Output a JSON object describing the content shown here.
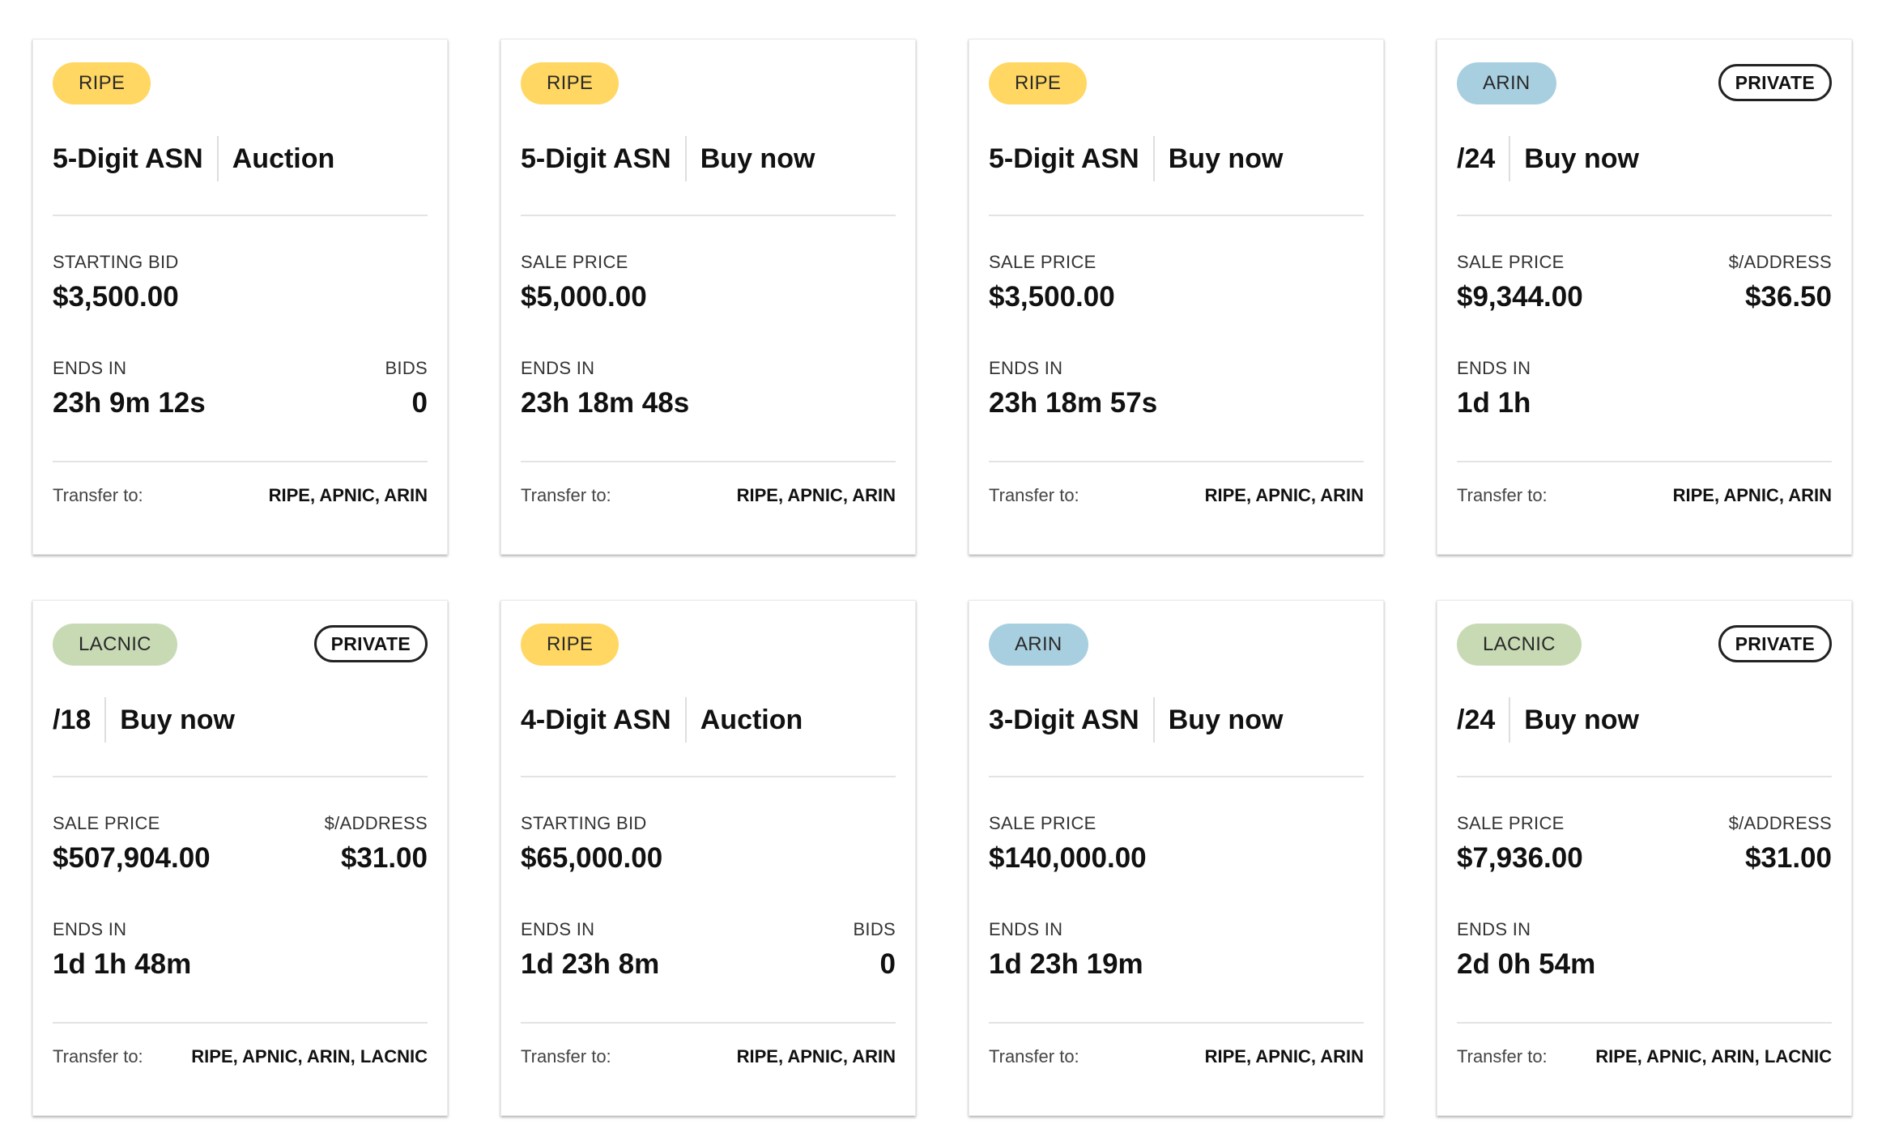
{
  "listings": [
    {
      "rir": "RIPE",
      "private": false,
      "item_type": "5-Digit ASN",
      "sale_type": "Auction",
      "price_label": "STARTING BID",
      "price": "$3,500.00",
      "per_address_label": "",
      "per_address": "",
      "ends_label": "ENDS IN",
      "ends_in": "23h 9m 12s",
      "bids_label": "BIDS",
      "bids": "0",
      "transfer_label": "Transfer to:",
      "transfer_to": "RIPE, APNIC, ARIN"
    },
    {
      "rir": "RIPE",
      "private": false,
      "item_type": "5-Digit ASN",
      "sale_type": "Buy now",
      "price_label": "SALE PRICE",
      "price": "$5,000.00",
      "per_address_label": "",
      "per_address": "",
      "ends_label": "ENDS IN",
      "ends_in": "23h 18m 48s",
      "bids_label": "",
      "bids": "",
      "transfer_label": "Transfer to:",
      "transfer_to": "RIPE, APNIC, ARIN"
    },
    {
      "rir": "RIPE",
      "private": false,
      "item_type": "5-Digit ASN",
      "sale_type": "Buy now",
      "price_label": "SALE PRICE",
      "price": "$3,500.00",
      "per_address_label": "",
      "per_address": "",
      "ends_label": "ENDS IN",
      "ends_in": "23h 18m 57s",
      "bids_label": "",
      "bids": "",
      "transfer_label": "Transfer to:",
      "transfer_to": "RIPE, APNIC, ARIN"
    },
    {
      "rir": "ARIN",
      "private": true,
      "private_label": "PRIVATE",
      "item_type": "/24",
      "sale_type": "Buy now",
      "price_label": "SALE PRICE",
      "price": "$9,344.00",
      "per_address_label": "$/ADDRESS",
      "per_address": "$36.50",
      "ends_label": "ENDS IN",
      "ends_in": "1d 1h",
      "bids_label": "",
      "bids": "",
      "transfer_label": "Transfer to:",
      "transfer_to": "RIPE, APNIC, ARIN"
    },
    {
      "rir": "LACNIC",
      "private": true,
      "private_label": "PRIVATE",
      "item_type": "/18",
      "sale_type": "Buy now",
      "price_label": "SALE PRICE",
      "price": "$507,904.00",
      "per_address_label": "$/ADDRESS",
      "per_address": "$31.00",
      "ends_label": "ENDS IN",
      "ends_in": "1d 1h 48m",
      "bids_label": "",
      "bids": "",
      "transfer_label": "Transfer to:",
      "transfer_to": "RIPE, APNIC, ARIN, LACNIC"
    },
    {
      "rir": "RIPE",
      "private": false,
      "item_type": "4-Digit ASN",
      "sale_type": "Auction",
      "price_label": "STARTING BID",
      "price": "$65,000.00",
      "per_address_label": "",
      "per_address": "",
      "ends_label": "ENDS IN",
      "ends_in": "1d 23h 8m",
      "bids_label": "BIDS",
      "bids": "0",
      "transfer_label": "Transfer to:",
      "transfer_to": "RIPE, APNIC, ARIN"
    },
    {
      "rir": "ARIN",
      "private": false,
      "item_type": "3-Digit ASN",
      "sale_type": "Buy now",
      "price_label": "SALE PRICE",
      "price": "$140,000.00",
      "per_address_label": "",
      "per_address": "",
      "ends_label": "ENDS IN",
      "ends_in": "1d 23h 19m",
      "bids_label": "",
      "bids": "",
      "transfer_label": "Transfer to:",
      "transfer_to": "RIPE, APNIC, ARIN"
    },
    {
      "rir": "LACNIC",
      "private": true,
      "private_label": "PRIVATE",
      "item_type": "/24",
      "sale_type": "Buy now",
      "price_label": "SALE PRICE",
      "price": "$7,936.00",
      "per_address_label": "$/ADDRESS",
      "per_address": "$31.00",
      "ends_label": "ENDS IN",
      "ends_in": "2d 0h 54m",
      "bids_label": "",
      "bids": "",
      "transfer_label": "Transfer to:",
      "transfer_to": "RIPE, APNIC, ARIN, LACNIC"
    }
  ],
  "colors": {
    "RIPE": "#ffd762",
    "ARIN": "#a8cfe0",
    "LACNIC": "#c8dab4"
  }
}
